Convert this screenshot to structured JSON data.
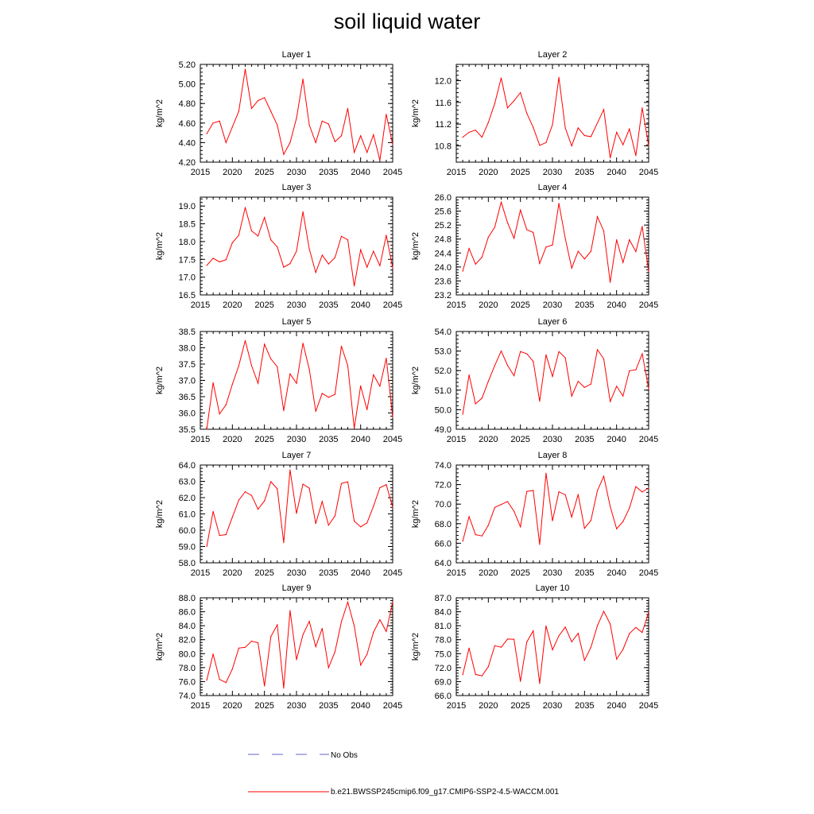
{
  "title": "soil liquid water",
  "legend": {
    "obs_label": "No Obs",
    "model_label": "b.e21.BWSSP245cmip6.f09_g17.CMIP6-SSP2-4.5-WACCM.001",
    "obs_color": "#6666cc",
    "model_color": "#ff0000"
  },
  "chart_data": [
    {
      "type": "line",
      "title": "Layer 1",
      "ylabel": "kg/m^2",
      "xlim": [
        2015,
        2045
      ],
      "ylim": [
        4.2,
        5.2
      ],
      "yticks": [
        "4.20",
        "4.40",
        "4.60",
        "4.80",
        "5.00",
        "5.20"
      ],
      "xticks": [
        "2015",
        "2020",
        "2025",
        "2030",
        "2035",
        "2040",
        "2045"
      ],
      "x": [
        2016,
        2017,
        2018,
        2019,
        2020,
        2021,
        2022,
        2023,
        2024,
        2025,
        2026,
        2027,
        2028,
        2029,
        2030,
        2031,
        2032,
        2033,
        2034,
        2035,
        2036,
        2037,
        2038,
        2039,
        2040,
        2041,
        2042,
        2043,
        2044,
        2045
      ],
      "y": [
        4.49,
        4.6,
        4.62,
        4.4,
        4.56,
        4.72,
        5.15,
        4.75,
        4.83,
        4.86,
        4.72,
        4.58,
        4.28,
        4.4,
        4.65,
        5.05,
        4.58,
        4.4,
        4.62,
        4.59,
        4.41,
        4.47,
        4.75,
        4.3,
        4.47,
        4.3,
        4.48,
        4.22,
        4.69,
        4.38
      ]
    },
    {
      "type": "line",
      "title": "Layer 2",
      "ylabel": "kg/m^2",
      "xlim": [
        2015,
        2045
      ],
      "ylim": [
        10.5,
        12.3
      ],
      "yticks": [
        "10.8",
        "11.2",
        "11.6",
        "12.0"
      ],
      "xticks": [
        "2015",
        "2020",
        "2025",
        "2030",
        "2035",
        "2040",
        "2045"
      ],
      "x": [
        2016,
        2017,
        2018,
        2019,
        2020,
        2021,
        2022,
        2023,
        2024,
        2025,
        2026,
        2027,
        2028,
        2029,
        2030,
        2031,
        2032,
        2033,
        2034,
        2035,
        2036,
        2037,
        2038,
        2039,
        2040,
        2041,
        2042,
        2043,
        2044,
        2045
      ],
      "y": [
        10.96,
        11.05,
        11.09,
        10.96,
        11.23,
        11.58,
        12.05,
        11.5,
        11.63,
        11.78,
        11.4,
        11.14,
        10.81,
        10.86,
        11.19,
        12.06,
        11.13,
        10.8,
        11.13,
        10.99,
        10.97,
        11.22,
        11.47,
        10.58,
        11.05,
        10.82,
        11.11,
        10.62,
        11.5,
        10.8
      ]
    },
    {
      "type": "line",
      "title": "Layer 3",
      "ylabel": "kg/m^2",
      "xlim": [
        2015,
        2045
      ],
      "ylim": [
        16.5,
        19.25
      ],
      "yticks": [
        "16.5",
        "17.0",
        "17.5",
        "18.0",
        "18.5",
        "19.0"
      ],
      "xticks": [
        "2015",
        "2020",
        "2025",
        "2030",
        "2035",
        "2040",
        "2045"
      ],
      "x": [
        2016,
        2017,
        2018,
        2019,
        2020,
        2021,
        2022,
        2023,
        2024,
        2025,
        2026,
        2027,
        2028,
        2029,
        2030,
        2031,
        2032,
        2033,
        2034,
        2035,
        2036,
        2037,
        2038,
        2039,
        2040,
        2041,
        2042,
        2043,
        2044,
        2045
      ],
      "y": [
        17.33,
        17.53,
        17.43,
        17.49,
        17.97,
        18.18,
        18.96,
        18.3,
        18.16,
        18.68,
        18.05,
        17.85,
        17.28,
        17.38,
        17.73,
        18.84,
        17.79,
        17.13,
        17.62,
        17.37,
        17.55,
        18.15,
        18.05,
        16.75,
        17.77,
        17.28,
        17.73,
        17.32,
        18.18,
        17.26
      ]
    },
    {
      "type": "line",
      "title": "Layer 4",
      "ylabel": "kg/m^2",
      "xlim": [
        2015,
        2045
      ],
      "ylim": [
        23.2,
        26.0
      ],
      "yticks": [
        "23.2",
        "23.6",
        "24.0",
        "24.4",
        "24.8",
        "25.2",
        "25.6",
        "26.0"
      ],
      "xticks": [
        "2015",
        "2020",
        "2025",
        "2030",
        "2035",
        "2040",
        "2045"
      ],
      "x": [
        2016,
        2017,
        2018,
        2019,
        2020,
        2021,
        2022,
        2023,
        2024,
        2025,
        2026,
        2027,
        2028,
        2029,
        2030,
        2031,
        2032,
        2033,
        2034,
        2035,
        2036,
        2037,
        2038,
        2039,
        2040,
        2041,
        2042,
        2043,
        2044,
        2045
      ],
      "y": [
        23.88,
        24.53,
        24.08,
        24.28,
        24.85,
        25.14,
        25.86,
        25.27,
        24.82,
        25.63,
        25.07,
        24.99,
        24.1,
        24.57,
        24.63,
        25.82,
        24.82,
        23.97,
        24.45,
        24.23,
        24.45,
        25.44,
        25.03,
        23.56,
        24.78,
        24.13,
        24.78,
        24.44,
        25.16,
        23.87
      ]
    },
    {
      "type": "line",
      "title": "Layer 5",
      "ylabel": "kg/m^2",
      "xlim": [
        2015,
        2045
      ],
      "ylim": [
        35.5,
        38.5
      ],
      "yticks": [
        "35.5",
        "36.0",
        "36.5",
        "37.0",
        "37.5",
        "38.0",
        "38.5"
      ],
      "xticks": [
        "2015",
        "2020",
        "2025",
        "2030",
        "2035",
        "2040",
        "2045"
      ],
      "x": [
        2016,
        2017,
        2018,
        2019,
        2020,
        2021,
        2022,
        2023,
        2024,
        2025,
        2026,
        2027,
        2028,
        2029,
        2030,
        2031,
        2032,
        2033,
        2034,
        2035,
        2036,
        2037,
        2038,
        2039,
        2040,
        2041,
        2042,
        2043,
        2044,
        2045
      ],
      "y": [
        35.5,
        36.93,
        35.97,
        36.25,
        36.88,
        37.45,
        38.22,
        37.45,
        36.91,
        38.11,
        37.66,
        37.42,
        36.07,
        37.2,
        36.91,
        38.14,
        37.34,
        36.05,
        36.6,
        36.48,
        36.57,
        38.05,
        37.45,
        35.53,
        36.83,
        36.1,
        37.17,
        36.82,
        37.68,
        35.87
      ]
    },
    {
      "type": "line",
      "title": "Layer 6",
      "ylabel": "kg/m^2",
      "xlim": [
        2015,
        2045
      ],
      "ylim": [
        49.0,
        54.0
      ],
      "yticks": [
        "49.0",
        "50.0",
        "51.0",
        "52.0",
        "53.0",
        "54.0"
      ],
      "xticks": [
        "2015",
        "2020",
        "2025",
        "2030",
        "2035",
        "2040",
        "2045"
      ],
      "x": [
        2016,
        2017,
        2018,
        2019,
        2020,
        2021,
        2022,
        2023,
        2024,
        2025,
        2026,
        2027,
        2028,
        2029,
        2030,
        2031,
        2032,
        2033,
        2034,
        2035,
        2036,
        2037,
        2038,
        2039,
        2040,
        2041,
        2042,
        2043,
        2044,
        2045
      ],
      "y": [
        49.77,
        51.78,
        50.3,
        50.59,
        51.45,
        52.26,
        53.0,
        52.27,
        51.74,
        52.97,
        52.86,
        52.47,
        50.43,
        52.81,
        51.7,
        52.97,
        52.66,
        50.7,
        51.45,
        51.14,
        51.31,
        53.07,
        52.6,
        50.42,
        51.2,
        50.7,
        51.99,
        52.04,
        52.86,
        51.07
      ]
    },
    {
      "type": "line",
      "title": "Layer 7",
      "ylabel": "kg/m^2",
      "xlim": [
        2015,
        2045
      ],
      "ylim": [
        58.0,
        64.0
      ],
      "yticks": [
        "58.0",
        "59.0",
        "60.0",
        "61.0",
        "62.0",
        "63.0",
        "64.0"
      ],
      "xticks": [
        "2015",
        "2020",
        "2025",
        "2030",
        "2035",
        "2040",
        "2045"
      ],
      "x": [
        2016,
        2017,
        2018,
        2019,
        2020,
        2021,
        2022,
        2023,
        2024,
        2025,
        2026,
        2027,
        2028,
        2029,
        2030,
        2031,
        2032,
        2033,
        2034,
        2035,
        2036,
        2037,
        2038,
        2039,
        2040,
        2041,
        2042,
        2043,
        2044,
        2045
      ],
      "y": [
        59.0,
        61.15,
        59.68,
        59.73,
        60.8,
        61.85,
        62.36,
        62.13,
        61.29,
        61.8,
        62.98,
        62.54,
        59.24,
        63.7,
        61.03,
        62.83,
        62.58,
        60.41,
        61.76,
        60.31,
        60.88,
        62.87,
        62.97,
        60.56,
        60.21,
        60.45,
        61.47,
        62.61,
        62.8,
        61.4
      ]
    },
    {
      "type": "line",
      "title": "Layer 8",
      "ylabel": "kg/m^2",
      "xlim": [
        2015,
        2045
      ],
      "ylim": [
        64.0,
        74.0
      ],
      "yticks": [
        "64.0",
        "66.0",
        "68.0",
        "70.0",
        "72.0",
        "74.0"
      ],
      "xticks": [
        "2015",
        "2020",
        "2025",
        "2030",
        "2035",
        "2040",
        "2045"
      ],
      "x": [
        2016,
        2017,
        2018,
        2019,
        2020,
        2021,
        2022,
        2023,
        2024,
        2025,
        2026,
        2027,
        2028,
        2029,
        2030,
        2031,
        2032,
        2033,
        2034,
        2035,
        2036,
        2037,
        2038,
        2039,
        2040,
        2041,
        2042,
        2043,
        2044,
        2045
      ],
      "y": [
        66.2,
        68.73,
        66.88,
        66.75,
        67.84,
        69.66,
        69.97,
        70.26,
        69.28,
        67.68,
        71.29,
        71.4,
        65.88,
        73.16,
        68.3,
        71.26,
        70.97,
        68.68,
        70.99,
        67.53,
        68.34,
        71.37,
        72.85,
        69.77,
        67.48,
        68.22,
        69.59,
        71.8,
        71.24,
        71.64
      ]
    },
    {
      "type": "line",
      "title": "Layer 9",
      "ylabel": "kg/m^2",
      "xlim": [
        2015,
        2045
      ],
      "ylim": [
        74.0,
        88.0
      ],
      "yticks": [
        "74.0",
        "76.0",
        "78.0",
        "80.0",
        "82.0",
        "84.0",
        "86.0",
        "88.0"
      ],
      "xticks": [
        "2015",
        "2020",
        "2025",
        "2030",
        "2035",
        "2040",
        "2045"
      ],
      "x": [
        2016,
        2017,
        2018,
        2019,
        2020,
        2021,
        2022,
        2023,
        2024,
        2025,
        2026,
        2027,
        2028,
        2029,
        2030,
        2031,
        2032,
        2033,
        2034,
        2035,
        2036,
        2037,
        2038,
        2039,
        2040,
        2041,
        2042,
        2043,
        2044,
        2045
      ],
      "y": [
        76.2,
        79.95,
        76.31,
        75.85,
        77.8,
        80.79,
        80.91,
        81.8,
        81.57,
        75.38,
        82.42,
        84.13,
        75.07,
        86.17,
        79.13,
        82.72,
        84.62,
        81.0,
        83.61,
        78.0,
        80.26,
        84.57,
        87.39,
        83.99,
        78.36,
        79.91,
        83.07,
        84.86,
        83.17,
        87.4
      ]
    },
    {
      "type": "line",
      "title": "Layer 10",
      "ylabel": "kg/m^2",
      "xlim": [
        2015,
        2045
      ],
      "ylim": [
        66.0,
        87.0
      ],
      "yticks": [
        "66.0",
        "69.0",
        "72.0",
        "75.0",
        "78.0",
        "81.0",
        "84.0",
        "87.0"
      ],
      "xticks": [
        "2015",
        "2020",
        "2025",
        "2030",
        "2035",
        "2040",
        "2045"
      ],
      "x": [
        2016,
        2017,
        2018,
        2019,
        2020,
        2021,
        2022,
        2023,
        2024,
        2025,
        2026,
        2027,
        2028,
        2029,
        2030,
        2031,
        2032,
        2033,
        2034,
        2035,
        2036,
        2037,
        2038,
        2039,
        2040,
        2041,
        2042,
        2043,
        2044,
        2045
      ],
      "y": [
        70.46,
        76.19,
        70.55,
        70.23,
        72.19,
        76.7,
        76.38,
        78.14,
        78.09,
        69.06,
        77.5,
        79.89,
        68.59,
        80.95,
        75.81,
        78.86,
        80.7,
        77.54,
        79.37,
        73.56,
        76.38,
        80.99,
        84.09,
        81.38,
        73.83,
        75.9,
        79.31,
        80.63,
        79.56,
        83.93
      ]
    }
  ]
}
